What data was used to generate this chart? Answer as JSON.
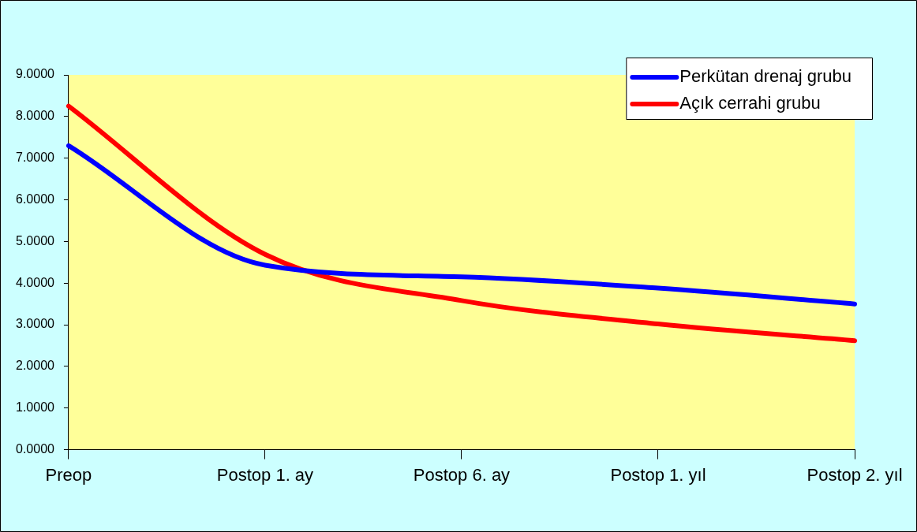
{
  "chart_data": {
    "type": "line",
    "categories": [
      "Preop",
      "Postop 1. ay",
      "Postop 6. ay",
      "Postop 1. yıl",
      "Postop 2. yıl"
    ],
    "series": [
      {
        "name": "Perkütan drenaj grubu",
        "color": "#0000ff",
        "values": [
          7.3,
          4.43,
          4.15,
          3.88,
          3.5
        ]
      },
      {
        "name": "Açık cerrahi grubu",
        "color": "#ff0000",
        "values": [
          8.25,
          4.69,
          3.58,
          3.02,
          2.62
        ]
      }
    ],
    "ylim": [
      0,
      9
    ],
    "yticks": [
      {
        "value": 0,
        "label": "0.0000"
      },
      {
        "value": 1,
        "label": "1.0000"
      },
      {
        "value": 2,
        "label": "2.0000"
      },
      {
        "value": 3,
        "label": "3.0000"
      },
      {
        "value": 4,
        "label": "4.0000"
      },
      {
        "value": 5,
        "label": "5.0000"
      },
      {
        "value": 6,
        "label": "6.0000"
      },
      {
        "value": 7,
        "label": "7.0000"
      },
      {
        "value": 8,
        "label": "8.0000"
      },
      {
        "value": 9,
        "label": "9.0000"
      }
    ],
    "legend": "top right",
    "marker": "none",
    "line_style": "solid"
  }
}
